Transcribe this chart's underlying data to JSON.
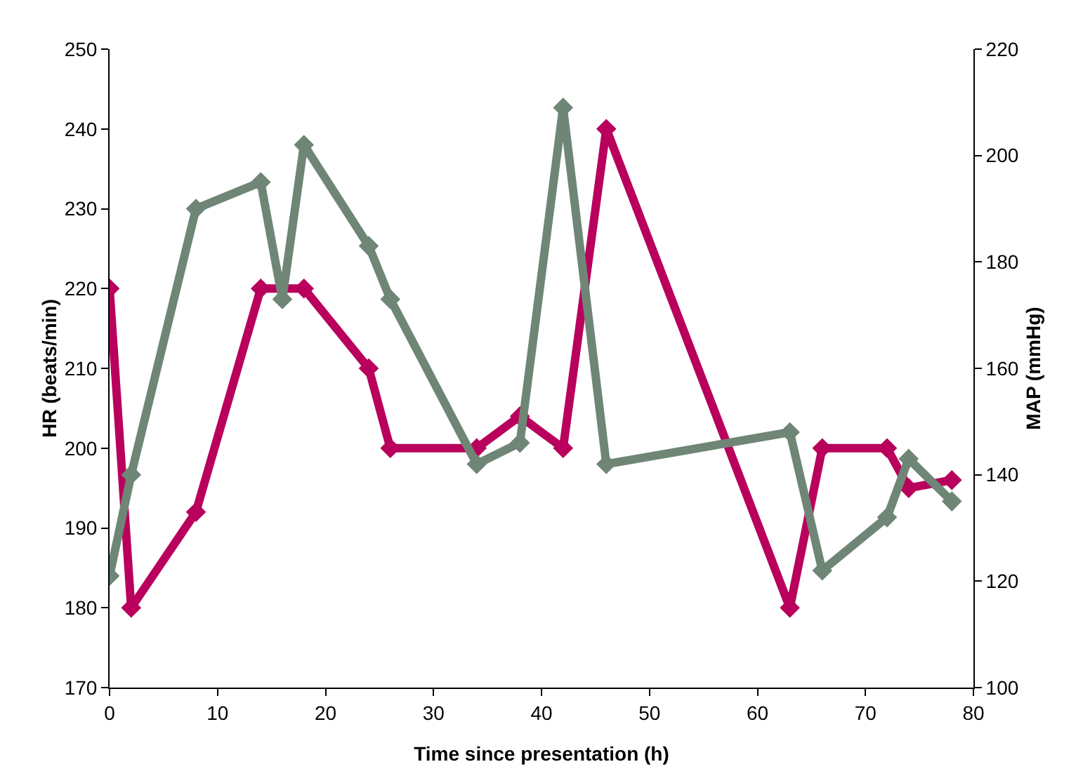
{
  "chart_data": {
    "type": "line",
    "xlabel": "Time since presentation (h)",
    "ylabel": "HR (beats/min)",
    "y2label": "MAP (mmHg)",
    "xlim": [
      0,
      80
    ],
    "xticks": [
      0,
      10,
      20,
      30,
      40,
      50,
      60,
      70,
      80
    ],
    "ylim": [
      170,
      250
    ],
    "yticks": [
      170,
      180,
      190,
      200,
      210,
      220,
      230,
      240,
      250
    ],
    "y2lim": [
      100,
      220
    ],
    "y2ticks": [
      100,
      120,
      140,
      160,
      180,
      200,
      220
    ],
    "grid": false,
    "marker": "diamond",
    "line_style": "solid",
    "series": [
      {
        "color": "#b8005c",
        "x": [
          0,
          2,
          8,
          14,
          18,
          24,
          26,
          34,
          38,
          42,
          46,
          63,
          66,
          72,
          74,
          78
        ],
        "values": [
          220,
          180,
          192,
          220,
          220,
          210,
          200,
          200,
          204,
          200,
          240,
          180,
          200,
          200,
          195,
          196
        ]
      },
      {
        "color": "#6f8677",
        "axis": "y2",
        "x": [
          0,
          2,
          8,
          14,
          16,
          18,
          24,
          26,
          34,
          38,
          42,
          46,
          63,
          66,
          72,
          74,
          78
        ],
        "values": [
          121,
          140,
          190,
          195,
          173,
          202,
          183,
          173,
          142,
          146,
          209,
          142,
          148,
          122,
          132,
          143,
          135
        ]
      }
    ]
  }
}
